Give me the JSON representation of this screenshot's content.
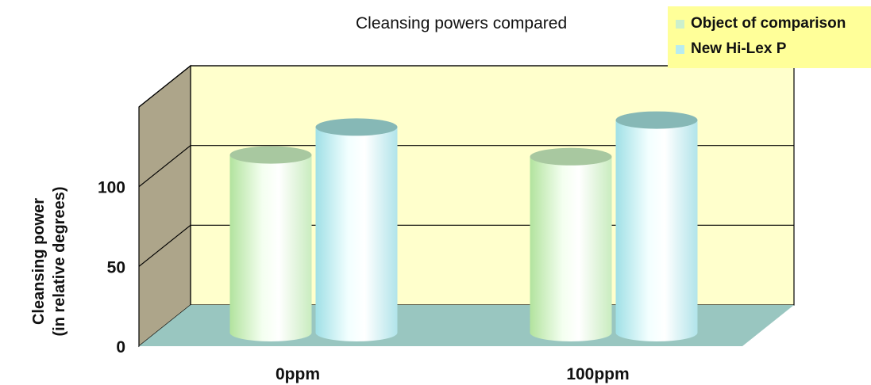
{
  "chart_data": {
    "type": "bar",
    "title": "Cleansing powers compared",
    "categories": [
      "0ppm",
      "100ppm"
    ],
    "series": [
      {
        "name": "Object of comparison",
        "values": [
          102,
          101
        ]
      },
      {
        "name": "New Hi-Lex P",
        "values": [
          118,
          122
        ]
      }
    ],
    "ylabel_lines": [
      "Cleansing power",
      "(in relative degrees)"
    ],
    "xlabel": "",
    "ylim": [
      0,
      150
    ],
    "yticks": [
      0,
      50,
      100
    ],
    "grid_values": [
      50,
      100,
      150
    ],
    "grid": true,
    "three_d": true,
    "legend_position": "top-right",
    "colors": {
      "series": [
        "#ccf0cc",
        "#b8ecf0"
      ],
      "back_wall": "#ffffcc",
      "side_wall": "#ada58a",
      "floor": "#99c6c0",
      "legend_bg": "#ffff99"
    }
  }
}
